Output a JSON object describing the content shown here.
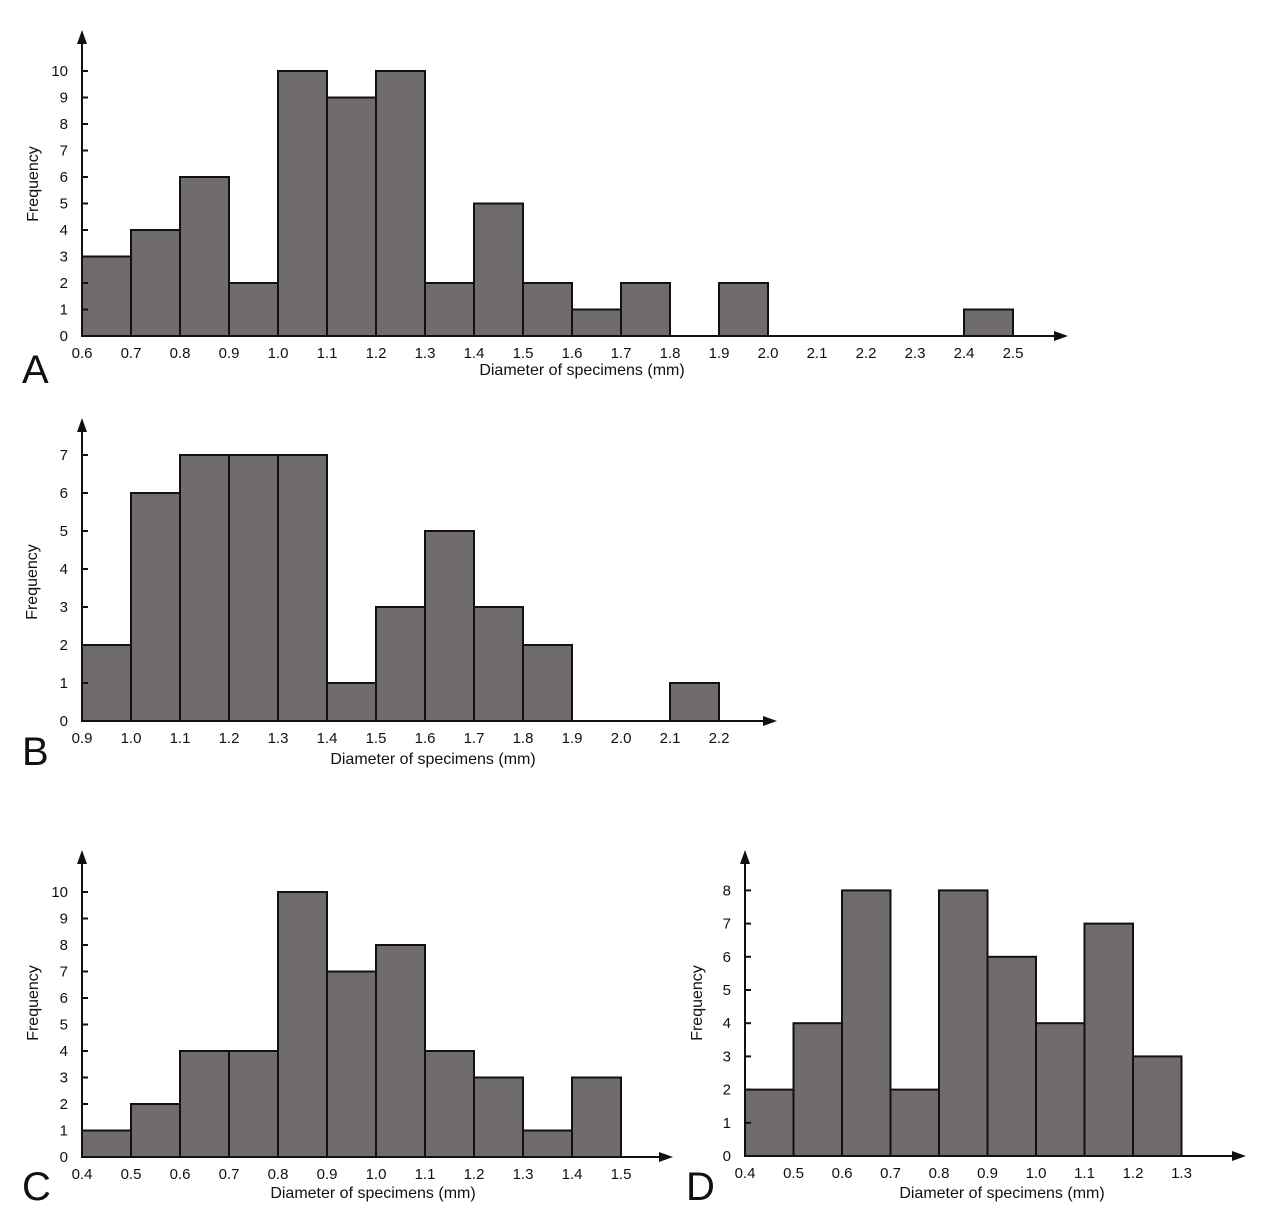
{
  "chart_data": [
    {
      "type": "bar",
      "panel": "A",
      "xlabel": "Diameter of specimens (mm)",
      "ylabel": "Frequency",
      "x_ticks": [
        "0.6",
        "0.7",
        "0.8",
        "0.9",
        "1.0",
        "1.1",
        "1.2",
        "1.3",
        "1.4",
        "1.5",
        "1.6",
        "1.7",
        "1.8",
        "1.9",
        "2.0",
        "2.1",
        "2.2",
        "2.3",
        "2.4",
        "2.5"
      ],
      "y_ticks": [
        "0",
        "1",
        "2",
        "3",
        "4",
        "5",
        "6",
        "7",
        "8",
        "9",
        "10"
      ],
      "bins": [
        {
          "from": 0.6,
          "to": 0.7,
          "value": 3
        },
        {
          "from": 0.7,
          "to": 0.8,
          "value": 4
        },
        {
          "from": 0.8,
          "to": 0.9,
          "value": 6
        },
        {
          "from": 0.9,
          "to": 1.0,
          "value": 2
        },
        {
          "from": 1.0,
          "to": 1.1,
          "value": 10
        },
        {
          "from": 1.1,
          "to": 1.2,
          "value": 9
        },
        {
          "from": 1.2,
          "to": 1.3,
          "value": 10
        },
        {
          "from": 1.3,
          "to": 1.4,
          "value": 2
        },
        {
          "from": 1.4,
          "to": 1.5,
          "value": 5
        },
        {
          "from": 1.5,
          "to": 1.6,
          "value": 2
        },
        {
          "from": 1.6,
          "to": 1.7,
          "value": 1
        },
        {
          "from": 1.7,
          "to": 1.8,
          "value": 2
        },
        {
          "from": 1.9,
          "to": 2.0,
          "value": 2
        },
        {
          "from": 2.4,
          "to": 2.5,
          "value": 1
        }
      ]
    },
    {
      "type": "bar",
      "panel": "B",
      "xlabel": "Diameter of specimens (mm)",
      "ylabel": "Frequency",
      "x_ticks": [
        "0.9",
        "1.0",
        "1.1",
        "1.2",
        "1.3",
        "1.4",
        "1.5",
        "1.6",
        "1.7",
        "1.8",
        "1.9",
        "2.0",
        "2.1",
        "2.2"
      ],
      "y_ticks": [
        "0",
        "1",
        "2",
        "3",
        "4",
        "5",
        "6",
        "7"
      ],
      "bins": [
        {
          "from": 0.9,
          "to": 1.0,
          "value": 2
        },
        {
          "from": 1.0,
          "to": 1.1,
          "value": 6
        },
        {
          "from": 1.1,
          "to": 1.2,
          "value": 7
        },
        {
          "from": 1.2,
          "to": 1.3,
          "value": 7
        },
        {
          "from": 1.3,
          "to": 1.4,
          "value": 7
        },
        {
          "from": 1.4,
          "to": 1.5,
          "value": 1
        },
        {
          "from": 1.5,
          "to": 1.6,
          "value": 3
        },
        {
          "from": 1.6,
          "to": 1.7,
          "value": 5
        },
        {
          "from": 1.7,
          "to": 1.8,
          "value": 3
        },
        {
          "from": 1.8,
          "to": 1.9,
          "value": 2
        },
        {
          "from": 2.1,
          "to": 2.2,
          "value": 1
        }
      ]
    },
    {
      "type": "bar",
      "panel": "C",
      "xlabel": "Diameter of specimens (mm)",
      "ylabel": "Frequency",
      "x_ticks": [
        "0.4",
        "0.5",
        "0.6",
        "0.7",
        "0.8",
        "0.9",
        "1.0",
        "1.1",
        "1.2",
        "1.3",
        "1.4",
        "1.5"
      ],
      "y_ticks": [
        "0",
        "1",
        "2",
        "3",
        "4",
        "5",
        "6",
        "7",
        "8",
        "9",
        "10"
      ],
      "bins": [
        {
          "from": 0.4,
          "to": 0.5,
          "value": 1
        },
        {
          "from": 0.5,
          "to": 0.6,
          "value": 2
        },
        {
          "from": 0.6,
          "to": 0.7,
          "value": 4
        },
        {
          "from": 0.7,
          "to": 0.8,
          "value": 4
        },
        {
          "from": 0.8,
          "to": 0.9,
          "value": 10
        },
        {
          "from": 0.9,
          "to": 1.0,
          "value": 7
        },
        {
          "from": 1.0,
          "to": 1.1,
          "value": 8
        },
        {
          "from": 1.1,
          "to": 1.2,
          "value": 4
        },
        {
          "from": 1.2,
          "to": 1.3,
          "value": 3
        },
        {
          "from": 1.3,
          "to": 1.4,
          "value": 1
        },
        {
          "from": 1.4,
          "to": 1.5,
          "value": 3
        }
      ]
    },
    {
      "type": "bar",
      "panel": "D",
      "xlabel": "Diameter of specimens (mm)",
      "ylabel": "Frequency",
      "x_ticks": [
        "0.4",
        "0.5",
        "0.6",
        "0.7",
        "0.8",
        "0.9",
        "1.0",
        "1.1",
        "1.2",
        "1.3"
      ],
      "y_ticks": [
        "0",
        "1",
        "2",
        "3",
        "4",
        "5",
        "6",
        "7",
        "8"
      ],
      "bins": [
        {
          "from": 0.4,
          "to": 0.5,
          "value": 2
        },
        {
          "from": 0.5,
          "to": 0.6,
          "value": 4
        },
        {
          "from": 0.6,
          "to": 0.7,
          "value": 8
        },
        {
          "from": 0.7,
          "to": 0.8,
          "value": 2
        },
        {
          "from": 0.8,
          "to": 0.9,
          "value": 8
        },
        {
          "from": 0.9,
          "to": 1.0,
          "value": 6
        },
        {
          "from": 1.0,
          "to": 1.1,
          "value": 4
        },
        {
          "from": 1.1,
          "to": 1.2,
          "value": 7
        },
        {
          "from": 1.2,
          "to": 1.3,
          "value": 3
        }
      ]
    }
  ],
  "colors": {
    "bar_fill": "#716c6c",
    "stroke": "#111111"
  }
}
